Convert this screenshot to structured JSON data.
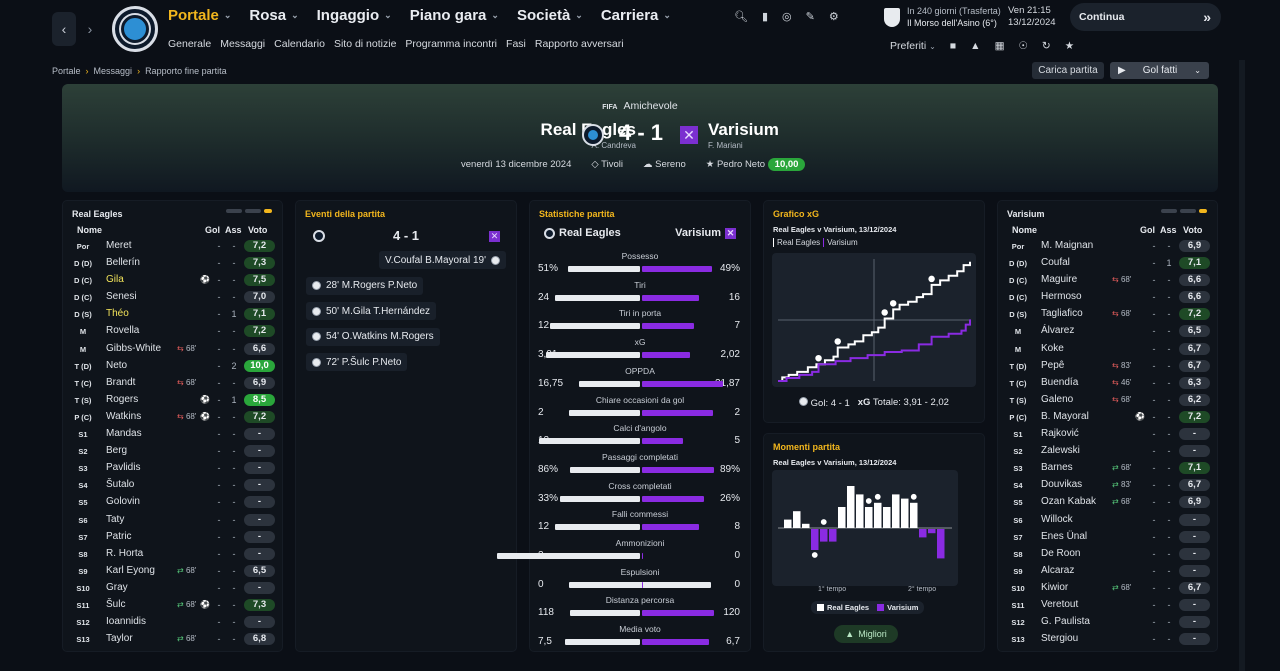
{
  "nav": {
    "back": "‹",
    "forward": "›",
    "menu": [
      {
        "label": "Portale",
        "active": true
      },
      {
        "label": "Rosa"
      },
      {
        "label": "Ingaggio"
      },
      {
        "label": "Piano gara"
      },
      {
        "label": "Società"
      },
      {
        "label": "Carriera"
      }
    ],
    "submenu": [
      "Generale",
      "Messaggi",
      "Calendario",
      "Sito di notizie",
      "Programma incontri",
      "Fasi",
      "Rapporto avversari"
    ],
    "next_match_line1": "In 240 giorni (Trasferta)",
    "next_match_line2": "Il Morso dell'Asino (6°)",
    "day_time": "Ven 21:15",
    "date": "13/12/2024",
    "continue_label": "Continua",
    "continue_icon": "»",
    "preferiti": "Preferiti"
  },
  "breadcrumb": [
    "Portale",
    "Messaggi",
    "Rapporto fine partita"
  ],
  "actions": {
    "carica": "Carica partita",
    "gol": "Gol fatti"
  },
  "match": {
    "competition": "Amichevole",
    "competition_logo": "FIFA",
    "home": {
      "name": "Real Eagles",
      "coach": "A. Candreva"
    },
    "away": {
      "name": "Varisium",
      "coach": "F. Mariani"
    },
    "score": "4 - 1",
    "date": "venerdì 13 dicembre 2024",
    "venue": "Tivoli",
    "weather": "Sereno",
    "mvp": "Pedro Neto",
    "mvp_rating": "10,00"
  },
  "home_lineup": {
    "title": "Real Eagles",
    "headers": {
      "name": "Nome",
      "gol": "Gol",
      "ass": "Ass",
      "voto": "Voto"
    },
    "rows": [
      {
        "pos": "Por",
        "name": "Meret",
        "gol": "-",
        "ass": "-",
        "voto": "7,2",
        "tone": "g"
      },
      {
        "pos": "D (D)",
        "name": "Bellerín",
        "gol": "-",
        "ass": "-",
        "voto": "7,3",
        "tone": "g"
      },
      {
        "pos": "D (C)",
        "name": "Gila",
        "hl": true,
        "ev": "⚽",
        "gol": "-",
        "ass": "-",
        "voto": "7,5",
        "tone": "g"
      },
      {
        "pos": "D (C)",
        "name": "Senesi",
        "gol": "-",
        "ass": "-",
        "voto": "7,0"
      },
      {
        "pos": "D (S)",
        "name": "Théo",
        "hl": true,
        "gol": "-",
        "ass": "1",
        "voto": "7,1",
        "tone": "g"
      },
      {
        "pos": "M",
        "name": "Rovella",
        "gol": "-",
        "ass": "-",
        "voto": "7,2",
        "tone": "g"
      },
      {
        "pos": "M",
        "name": "Gibbs-White",
        "sub": "68'",
        "subdir": "out",
        "gol": "-",
        "ass": "-",
        "voto": "6,6"
      },
      {
        "pos": "T (D)",
        "name": "Neto",
        "gol": "-",
        "ass": "2",
        "voto": "10,0",
        "tone": "gg"
      },
      {
        "pos": "T (C)",
        "name": "Brandt",
        "sub": "68'",
        "subdir": "out",
        "gol": "-",
        "ass": "-",
        "voto": "6,9"
      },
      {
        "pos": "T (S)",
        "name": "Rogers",
        "ev": "⚽",
        "gol": "-",
        "ass": "1",
        "voto": "8,5",
        "tone": "gg"
      },
      {
        "pos": "P (C)",
        "name": "Watkins",
        "sub": "68'",
        "subdir": "out",
        "ev": "⚽",
        "gol": "-",
        "ass": "-",
        "voto": "7,2",
        "tone": "g"
      },
      {
        "pos": "S1",
        "name": "Mandas",
        "gol": "-",
        "ass": "-",
        "voto": "-"
      },
      {
        "pos": "S2",
        "name": "Berg",
        "gol": "-",
        "ass": "-",
        "voto": "-"
      },
      {
        "pos": "S3",
        "name": "Pavlidis",
        "gol": "-",
        "ass": "-",
        "voto": "-"
      },
      {
        "pos": "S4",
        "name": "Šutalo",
        "gol": "-",
        "ass": "-",
        "voto": "-"
      },
      {
        "pos": "S5",
        "name": "Golovin",
        "gol": "-",
        "ass": "-",
        "voto": "-"
      },
      {
        "pos": "S6",
        "name": "Taty",
        "gol": "-",
        "ass": "-",
        "voto": "-"
      },
      {
        "pos": "S7",
        "name": "Patric",
        "gol": "-",
        "ass": "-",
        "voto": "-"
      },
      {
        "pos": "S8",
        "name": "R. Horta",
        "gol": "-",
        "ass": "-",
        "voto": "-"
      },
      {
        "pos": "S9",
        "name": "Karl Eyong",
        "sub": "68'",
        "subdir": "in",
        "gol": "-",
        "ass": "-",
        "voto": "6,5"
      },
      {
        "pos": "S10",
        "name": "Gray",
        "gol": "-",
        "ass": "-",
        "voto": "-"
      },
      {
        "pos": "S11",
        "name": "Šulc",
        "sub": "68'",
        "subdir": "in",
        "ev": "⚽",
        "gol": "-",
        "ass": "-",
        "voto": "7,3",
        "tone": "g"
      },
      {
        "pos": "S12",
        "name": "Ioannidis",
        "gol": "-",
        "ass": "-",
        "voto": "-"
      },
      {
        "pos": "S13",
        "name": "Taylor",
        "sub": "68'",
        "subdir": "in",
        "gol": "-",
        "ass": "-",
        "voto": "6,8"
      }
    ]
  },
  "away_lineup": {
    "title": "Varisium",
    "headers": {
      "name": "Nome",
      "gol": "Gol",
      "ass": "Ass",
      "voto": "Voto"
    },
    "rows": [
      {
        "pos": "Por",
        "name": "M. Maignan",
        "gol": "-",
        "ass": "-",
        "voto": "6,9"
      },
      {
        "pos": "D (D)",
        "name": "Coufal",
        "gol": "-",
        "ass": "1",
        "voto": "7,1",
        "tone": "g"
      },
      {
        "pos": "D (C)",
        "name": "Maguire",
        "sub": "68'",
        "subdir": "out",
        "gol": "-",
        "ass": "-",
        "voto": "6,6"
      },
      {
        "pos": "D (C)",
        "name": "Hermoso",
        "gol": "-",
        "ass": "-",
        "voto": "6,6"
      },
      {
        "pos": "D (S)",
        "name": "Tagliafico",
        "sub": "68'",
        "subdir": "out",
        "gol": "-",
        "ass": "-",
        "voto": "7,2",
        "tone": "g"
      },
      {
        "pos": "M",
        "name": "Álvarez",
        "gol": "-",
        "ass": "-",
        "voto": "6,5"
      },
      {
        "pos": "M",
        "name": "Koke",
        "gol": "-",
        "ass": "-",
        "voto": "6,7"
      },
      {
        "pos": "T (D)",
        "name": "Pepê",
        "sub": "83'",
        "subdir": "out",
        "gol": "-",
        "ass": "-",
        "voto": "6,7"
      },
      {
        "pos": "T (C)",
        "name": "Buendía",
        "sub": "46'",
        "subdir": "out",
        "gol": "-",
        "ass": "-",
        "voto": "6,3"
      },
      {
        "pos": "T (S)",
        "name": "Galeno",
        "sub": "68'",
        "subdir": "out",
        "gol": "-",
        "ass": "-",
        "voto": "6,2"
      },
      {
        "pos": "P (C)",
        "name": "B. Mayoral",
        "ev": "⚽",
        "gol": "-",
        "ass": "-",
        "voto": "7,2",
        "tone": "g"
      },
      {
        "pos": "S1",
        "name": "Rajković",
        "gol": "-",
        "ass": "-",
        "voto": "-"
      },
      {
        "pos": "S2",
        "name": "Zalewski",
        "gol": "-",
        "ass": "-",
        "voto": "-"
      },
      {
        "pos": "S3",
        "name": "Barnes",
        "sub": "68'",
        "subdir": "in",
        "gol": "-",
        "ass": "-",
        "voto": "7,1",
        "tone": "g"
      },
      {
        "pos": "S4",
        "name": "Douvikas",
        "sub": "83'",
        "subdir": "in",
        "gol": "-",
        "ass": "-",
        "voto": "6,7"
      },
      {
        "pos": "S5",
        "name": "Ozan Kabak",
        "sub": "68'",
        "subdir": "in",
        "gol": "-",
        "ass": "-",
        "voto": "6,9"
      },
      {
        "pos": "S6",
        "name": "Willock",
        "gol": "-",
        "ass": "-",
        "voto": "-"
      },
      {
        "pos": "S7",
        "name": "Enes Ünal",
        "gol": "-",
        "ass": "-",
        "voto": "-"
      },
      {
        "pos": "S8",
        "name": "De Roon",
        "gol": "-",
        "ass": "-",
        "voto": "-"
      },
      {
        "pos": "S9",
        "name": "Alcaraz",
        "gol": "-",
        "ass": "-",
        "voto": "-"
      },
      {
        "pos": "S10",
        "name": "Kiwior",
        "sub": "68'",
        "subdir": "in",
        "gol": "-",
        "ass": "-",
        "voto": "6,7"
      },
      {
        "pos": "S11",
        "name": "Veretout",
        "gol": "-",
        "ass": "-",
        "voto": "-"
      },
      {
        "pos": "S12",
        "name": "G. Paulista",
        "gol": "-",
        "ass": "-",
        "voto": "-"
      },
      {
        "pos": "S13",
        "name": "Stergiou",
        "gol": "-",
        "ass": "-",
        "voto": "-"
      }
    ]
  },
  "events": {
    "title": "Eventi della partita",
    "score": "4 - 1",
    "items": [
      {
        "side": "away",
        "text": "V.Coufal B.Mayoral 19'"
      },
      {
        "side": "home",
        "text": "28' M.Rogers P.Neto"
      },
      {
        "side": "home",
        "text": "50' M.Gila T.Hernández"
      },
      {
        "side": "home",
        "text": "54' O.Watkins M.Rogers"
      },
      {
        "side": "home",
        "text": "72' P.Šulc P.Neto"
      }
    ]
  },
  "stats": {
    "title": "Statistiche partita",
    "home": "Real Eagles",
    "away": "Varisium",
    "rows": [
      {
        "label": "Possesso",
        "home": "51%",
        "away": "49%",
        "hv": 51,
        "av": 49
      },
      {
        "label": "Tiri",
        "home": "24",
        "away": "16",
        "hv": 24,
        "av": 16
      },
      {
        "label": "Tiri in porta",
        "home": "12",
        "away": "7",
        "hv": 12,
        "av": 7
      },
      {
        "label": "xG",
        "home": "3,91",
        "away": "2,02",
        "hv": 3.91,
        "av": 2.02
      },
      {
        "label": "OPPDA",
        "home": "16,75",
        "away": "21,87",
        "hv": 16.75,
        "av": 21.87
      },
      {
        "label": "Chiare occasioni da gol",
        "home": "2",
        "away": "2",
        "hv": 2,
        "av": 2
      },
      {
        "label": "Calci d'angolo",
        "home": "12",
        "away": "5",
        "hv": 12,
        "av": 5
      },
      {
        "label": "Passaggi completati",
        "home": "86%",
        "away": "89%",
        "hv": 86,
        "av": 89
      },
      {
        "label": "Cross completati",
        "home": "33%",
        "away": "26%",
        "hv": 33,
        "av": 26
      },
      {
        "label": "Falli commessi",
        "home": "12",
        "away": "8",
        "hv": 12,
        "av": 8
      },
      {
        "label": "Ammonizioni",
        "home": "2",
        "away": "0",
        "hv": 2,
        "av": 0
      },
      {
        "label": "Espulsioni",
        "home": "0",
        "away": "0",
        "hv": 0,
        "av": 0
      },
      {
        "label": "Distanza percorsa",
        "home": "118",
        "away": "120",
        "hv": 118,
        "av": 120
      },
      {
        "label": "Media voto",
        "home": "7,5",
        "away": "6,7",
        "hv": 7.5,
        "av": 6.7
      }
    ]
  },
  "chart_data": [
    {
      "type": "line",
      "title": "Grafico xG",
      "subtitle": "Real Eagles v Varisium, 13/12/2024",
      "legend": [
        "Real Eagles",
        "Varisium"
      ],
      "xlim": [
        0,
        90
      ],
      "ylim": [
        0,
        4
      ],
      "series": [
        {
          "name": "Real Eagles",
          "color": "#ffffff",
          "steps": [
            [
              0,
              0
            ],
            [
              2,
              0.12
            ],
            [
              5,
              0.2
            ],
            [
              9,
              0.3
            ],
            [
              14,
              0.45
            ],
            [
              18,
              0.55
            ],
            [
              22,
              0.68
            ],
            [
              26,
              0.8
            ],
            [
              28,
              1.1
            ],
            [
              33,
              1.2
            ],
            [
              36,
              1.3
            ],
            [
              40,
              1.5
            ],
            [
              44,
              1.6
            ],
            [
              47,
              1.75
            ],
            [
              50,
              2.05
            ],
            [
              54,
              2.35
            ],
            [
              57,
              2.5
            ],
            [
              61,
              2.6
            ],
            [
              65,
              2.75
            ],
            [
              68,
              2.85
            ],
            [
              72,
              3.15
            ],
            [
              76,
              3.3
            ],
            [
              80,
              3.45
            ],
            [
              84,
              3.6
            ],
            [
              87,
              3.8
            ],
            [
              90,
              3.91
            ]
          ]
        },
        {
          "name": "Varisium",
          "color": "#8a2be2",
          "steps": [
            [
              0,
              0
            ],
            [
              4,
              0.1
            ],
            [
              10,
              0.2
            ],
            [
              16,
              0.3
            ],
            [
              19,
              0.55
            ],
            [
              27,
              0.65
            ],
            [
              34,
              0.75
            ],
            [
              42,
              0.85
            ],
            [
              50,
              0.95
            ],
            [
              58,
              1.0
            ],
            [
              66,
              1.2
            ],
            [
              72,
              1.45
            ],
            [
              80,
              1.55
            ],
            [
              86,
              1.65
            ],
            [
              88,
              1.85
            ],
            [
              90,
              2.02
            ]
          ]
        }
      ],
      "goals_home_min": [
        28,
        50,
        54,
        72
      ],
      "goals_away_min": [
        19
      ],
      "footer_goals": "Gol: 4 - 1",
      "footer_xg": "Totale: 3,91 - 2,02",
      "xg_label": "xG"
    },
    {
      "type": "bar",
      "title": "Momenti partita",
      "subtitle": "Real Eagles v Varisium, 13/12/2024",
      "x_ticks": [
        "1° tempo",
        "2° tempo"
      ],
      "legend": [
        "Real Eagles",
        "Varisium"
      ],
      "home_values": [
        0.2,
        0.4,
        0.1,
        0,
        0,
        0,
        0.5,
        1.0,
        0.8,
        0.5,
        0.6,
        0.5,
        0.8,
        0.7,
        0.6,
        0,
        0,
        0
      ],
      "away_values": [
        0,
        0,
        0,
        0.5,
        0.3,
        0.3,
        0,
        0,
        0,
        0,
        0,
        0,
        0,
        0,
        0,
        0.2,
        0.1,
        0.7
      ],
      "goal_markers_home": [
        4,
        9,
        10,
        14
      ],
      "goal_markers_away": [
        3
      ],
      "migliori": "Migliori"
    }
  ]
}
